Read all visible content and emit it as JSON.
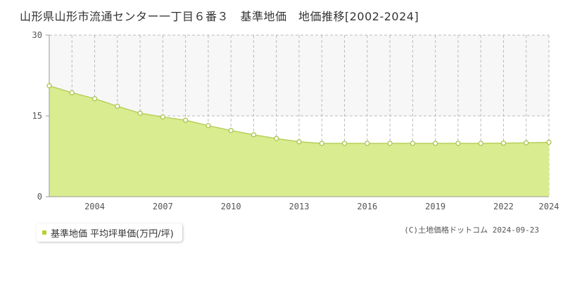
{
  "header": {
    "title": "山形県山形市流通センター一丁目６番３　基準地価　地価推移[2002-2024]"
  },
  "chart_data": {
    "type": "area",
    "title": "山形県山形市流通センター一丁目６番３　基準地価　地価推移[2002-2024]",
    "xlabel": "",
    "ylabel": "",
    "x": [
      2002,
      2003,
      2004,
      2005,
      2006,
      2007,
      2008,
      2009,
      2010,
      2011,
      2012,
      2013,
      2014,
      2015,
      2016,
      2017,
      2018,
      2019,
      2020,
      2021,
      2022,
      2023,
      2024
    ],
    "series": [
      {
        "name": "基準地価 平均坪単価(万円/坪)",
        "values": [
          20.6,
          19.3,
          18.2,
          16.8,
          15.5,
          14.8,
          14.2,
          13.2,
          12.3,
          11.5,
          10.8,
          10.2,
          9.9,
          9.9,
          9.9,
          9.9,
          9.9,
          9.9,
          9.9,
          9.9,
          9.95,
          10.0,
          10.1
        ]
      }
    ],
    "xlim": [
      2002,
      2024
    ],
    "ylim": [
      0,
      30
    ],
    "yticks": [
      "0",
      "15",
      "30"
    ],
    "xtick_labels": [
      "2004",
      "2007",
      "2010",
      "2013",
      "2016",
      "2019",
      "2022",
      "2024"
    ],
    "grid": true,
    "legend_position": "bottom-left",
    "colors": {
      "fill": "#d9ec8f",
      "line": "#b8cf5a",
      "marker_stroke": "#a9c44c",
      "marker_fill": "#ffffff",
      "legend_marker": "#b5d334",
      "grid": "#bbbbbb",
      "upper_band": "#f7f7f8"
    }
  },
  "legend": {
    "label": "基準地価 平均坪単価(万円/坪)"
  },
  "footer": {
    "copyright": "(C)土地価格ドットコム 2024-09-23"
  }
}
